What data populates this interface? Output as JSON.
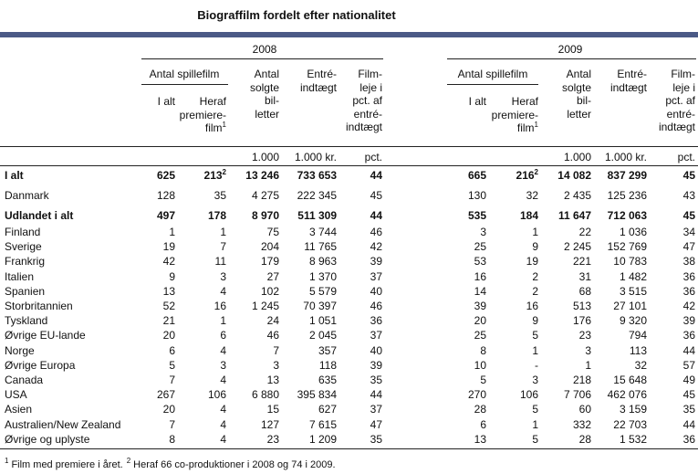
{
  "title": "Biograffilm fordelt efter nationalitet",
  "years": [
    "2008",
    "2009"
  ],
  "group_header": "Antal spillefilm",
  "column_headers": [
    {
      "lines": [
        "I alt"
      ]
    },
    {
      "lines": [
        "Heraf",
        "premiere-",
        "film"
      ],
      "sup": "1"
    },
    {
      "lines": [
        "Antal",
        "solgte",
        "bil-",
        "letter"
      ]
    },
    {
      "lines": [
        "Entré-",
        "indtægt"
      ]
    },
    {
      "lines": [
        "Film-",
        "leje i",
        "pct. af",
        "entré-",
        "indtægt"
      ]
    }
  ],
  "units": [
    "1.000",
    "1.000 kr.",
    "pct."
  ],
  "rows": [
    {
      "label": "I alt",
      "bold": true,
      "cells": [
        "625",
        {
          "text": "213",
          "sup": "2"
        },
        "13 246",
        "733 653",
        "44",
        "665",
        {
          "text": "216",
          "sup": "2"
        },
        "14 082",
        "837 299",
        "45"
      ]
    },
    {
      "label": "Danmark",
      "cells": [
        "128",
        "35",
        "4 275",
        "222 345",
        "45",
        "130",
        "32",
        "2 435",
        "125 236",
        "43"
      ]
    },
    {
      "label": "Udlandet i alt",
      "bold": true,
      "cells": [
        "497",
        "178",
        "8 970",
        "511 309",
        "44",
        "535",
        "184",
        "11 647",
        "712 063",
        "45"
      ]
    },
    {
      "label": "Finland",
      "cells": [
        "1",
        "1",
        "75",
        "3 744",
        "46",
        "3",
        "1",
        "22",
        "1 036",
        "34"
      ]
    },
    {
      "label": "Sverige",
      "cells": [
        "19",
        "7",
        "204",
        "11 765",
        "42",
        "25",
        "9",
        "2 245",
        "152 769",
        "47"
      ]
    },
    {
      "label": "Frankrig",
      "cells": [
        "42",
        "11",
        "179",
        "8 963",
        "39",
        "53",
        "19",
        "221",
        "10 783",
        "38"
      ]
    },
    {
      "label": "Italien",
      "cells": [
        "9",
        "3",
        "27",
        "1 370",
        "37",
        "16",
        "2",
        "31",
        "1 482",
        "36"
      ]
    },
    {
      "label": "Spanien",
      "cells": [
        "13",
        "4",
        "102",
        "5 579",
        "40",
        "14",
        "2",
        "68",
        "3 515",
        "36"
      ]
    },
    {
      "label": "Storbritannien",
      "cells": [
        "52",
        "16",
        "1 245",
        "70 397",
        "46",
        "39",
        "16",
        "513",
        "27 101",
        "42"
      ]
    },
    {
      "label": "Tyskland",
      "cells": [
        "21",
        "1",
        "24",
        "1 051",
        "36",
        "20",
        "9",
        "176",
        "9 320",
        "39"
      ]
    },
    {
      "label": "Øvrige EU-lande",
      "cells": [
        "20",
        "6",
        "46",
        "2 045",
        "37",
        "25",
        "5",
        "23",
        "794",
        "36"
      ]
    },
    {
      "label": "Norge",
      "cells": [
        "6",
        "4",
        "7",
        "357",
        "40",
        "8",
        "1",
        "3",
        "113",
        "44"
      ]
    },
    {
      "label": "Øvrige Europa",
      "cells": [
        "5",
        "3",
        "3",
        "118",
        "39",
        "10",
        "-",
        "1",
        "32",
        "57"
      ]
    },
    {
      "label": "Canada",
      "cells": [
        "7",
        "4",
        "13",
        "635",
        "35",
        "5",
        "3",
        "218",
        "15 648",
        "49"
      ]
    },
    {
      "label": "USA",
      "cells": [
        "267",
        "106",
        "6 880",
        "395 834",
        "44",
        "270",
        "106",
        "7 706",
        "462 076",
        "45"
      ]
    },
    {
      "label": "Asien",
      "cells": [
        "20",
        "4",
        "15",
        "627",
        "37",
        "28",
        "5",
        "60",
        "3 159",
        "35"
      ]
    },
    {
      "label": "Australien/New Zealand",
      "cells": [
        "7",
        "4",
        "127",
        "7 615",
        "47",
        "6",
        "1",
        "332",
        "22 703",
        "44"
      ]
    },
    {
      "label": "Øvrige og uplyste",
      "cells": [
        "8",
        "4",
        "23",
        "1 209",
        "35",
        "13",
        "5",
        "28",
        "1 532",
        "36"
      ]
    }
  ],
  "footnotes": [
    {
      "mark": "1",
      "text": "Film med premiere i året."
    },
    {
      "mark": "2",
      "text": "Heraf 66 co-produktioner i 2008 og 74 i 2009."
    }
  ]
}
